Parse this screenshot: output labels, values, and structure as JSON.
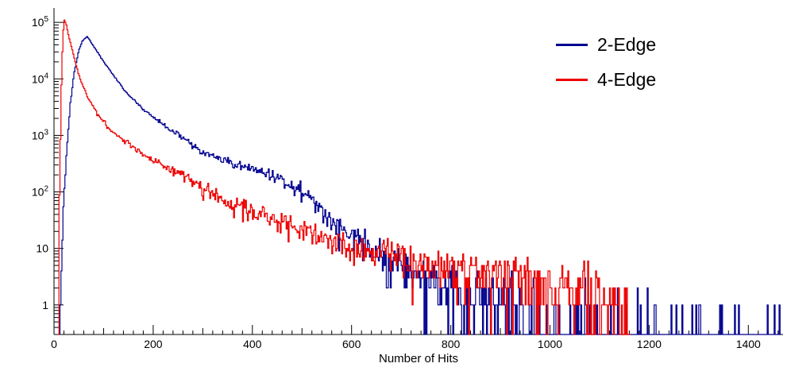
{
  "chart_data": {
    "type": "line",
    "subtype": "step-histogram",
    "title": "",
    "xlabel": "Number of Hits",
    "ylabel": "",
    "x_range": [
      0,
      1470
    ],
    "y_range": [
      0.3,
      180000
    ],
    "y_scale": "log",
    "grid": false,
    "axis_color": "#000000",
    "x_tick_labels": [
      {
        "value": 0,
        "text": "0"
      },
      {
        "value": 200,
        "text": "200"
      },
      {
        "value": 400,
        "text": "400"
      },
      {
        "value": 600,
        "text": "600"
      },
      {
        "value": 800,
        "text": "800"
      },
      {
        "value": 1000,
        "text": "1000"
      },
      {
        "value": 1200,
        "text": "1200"
      },
      {
        "value": 1400,
        "text": "1400"
      }
    ],
    "y_tick_labels": [
      {
        "value": 1,
        "base": "1",
        "exp": ""
      },
      {
        "value": 10,
        "base": "10",
        "exp": ""
      },
      {
        "value": 100,
        "base": "10",
        "exp": "2"
      },
      {
        "value": 1000,
        "base": "10",
        "exp": "3"
      },
      {
        "value": 10000,
        "base": "10",
        "exp": "4"
      },
      {
        "value": 100000,
        "base": "10",
        "exp": "5"
      }
    ],
    "legend": {
      "position": "top-right"
    },
    "series": [
      {
        "name": "2-Edge",
        "color": "#00008f",
        "seed": 42,
        "bin_width": 2,
        "envelope": [
          [
            12,
            0.4
          ],
          [
            18,
            30
          ],
          [
            25,
            400
          ],
          [
            32,
            3000
          ],
          [
            40,
            12000
          ],
          [
            50,
            32000
          ],
          [
            58,
            48000
          ],
          [
            67,
            56000
          ],
          [
            80,
            38000
          ],
          [
            99,
            21000
          ],
          [
            120,
            11500
          ],
          [
            139,
            6800
          ],
          [
            160,
            4300
          ],
          [
            180,
            2900
          ],
          [
            200,
            2100
          ],
          [
            230,
            1350
          ],
          [
            259,
            920
          ],
          [
            299,
            500
          ],
          [
            339,
            365
          ],
          [
            370,
            300
          ],
          [
            400,
            250
          ],
          [
            435,
            204
          ],
          [
            475,
            148
          ],
          [
            499,
            107
          ],
          [
            531,
            56
          ],
          [
            563,
            29
          ],
          [
            600,
            17
          ],
          [
            643,
            9
          ],
          [
            691,
            5.7
          ],
          [
            739,
            3.2
          ],
          [
            803,
            2.0
          ],
          [
            900,
            1.0
          ],
          [
            1000,
            0.35
          ],
          [
            1100,
            0.22
          ],
          [
            1250,
            0.12
          ],
          [
            1350,
            0.1
          ],
          [
            1465,
            0.12
          ]
        ]
      },
      {
        "name": "4-Edge",
        "color": "#ee0000",
        "seed": 7,
        "bin_width": 2,
        "envelope": [
          [
            8,
            0.4
          ],
          [
            12,
            300
          ],
          [
            15,
            8000
          ],
          [
            18,
            60000
          ],
          [
            21,
            110000
          ],
          [
            25,
            90000
          ],
          [
            30,
            55000
          ],
          [
            35,
            38000
          ],
          [
            45,
            17000
          ],
          [
            51,
            11000
          ],
          [
            67,
            4900
          ],
          [
            91,
            2200
          ],
          [
            115,
            1200
          ],
          [
            147,
            740
          ],
          [
            200,
            365
          ],
          [
            259,
            190
          ],
          [
            323,
            85
          ],
          [
            400,
            45
          ],
          [
            467,
            26
          ],
          [
            531,
            17
          ],
          [
            600,
            11.5
          ],
          [
            675,
            8.5
          ],
          [
            755,
            5.5
          ],
          [
            851,
            4.0
          ],
          [
            947,
            3.0
          ],
          [
            1043,
            2.2
          ],
          [
            1123,
            1.5
          ],
          [
            1150,
            1.0
          ],
          [
            1162,
            0.5
          ]
        ]
      }
    ]
  }
}
